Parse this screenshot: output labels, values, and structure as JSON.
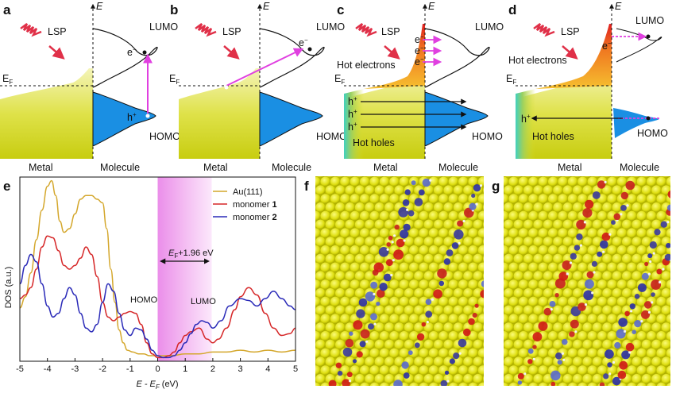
{
  "panel_labels": {
    "a": "a",
    "b": "b",
    "c": "c",
    "d": "d",
    "e": "e",
    "f": "f",
    "g": "g"
  },
  "diagram": {
    "energy_axis": "E",
    "fermi_label": "E",
    "fermi_sub": "F",
    "lsp": "LSP",
    "lumo": "LUMO",
    "homo": "HOMO",
    "metal": "Metal",
    "molecule": "Molecule",
    "electron": "e",
    "hole": "h",
    "minus": "−",
    "plus": "+",
    "hot_electrons": "Hot electrons",
    "hot_holes": "Hot holes"
  },
  "colors": {
    "metal_yellow": "#d8dc2a",
    "homo_blue": "#1a8fe3",
    "hot_orange": "#f07820",
    "arrow_magenta": "#e040e0",
    "lsp_red": "#e03048",
    "band_pink": "#f2a6f0",
    "au_line": "#d4a72c",
    "m1_line": "#d62728",
    "m2_line": "#2a2ab8"
  },
  "chart_data": {
    "type": "line",
    "xlabel_main": "E - E",
    "xlabel_sub": "F",
    "xlabel_unit": "(eV)",
    "ylabel": "DOS (a.u.)",
    "xlim": [
      -5,
      5
    ],
    "xticks": [
      "-5",
      "-4",
      "-3",
      "-2",
      "-1",
      "0",
      "1",
      "2",
      "3",
      "4",
      "5"
    ],
    "band": {
      "from": 0,
      "to": 1.96,
      "label_main": "E",
      "label_sub": "F",
      "label_rest": "+1.96 eV"
    },
    "annotations": {
      "homo": "HOMO",
      "lumo": "LUMO"
    },
    "legend": {
      "placement": "top-right",
      "entries": [
        {
          "name": "Au(111)",
          "color": "#d4a72c"
        },
        {
          "name": "monomer ",
          "bold": "1",
          "color": "#d62728"
        },
        {
          "name": "monomer ",
          "bold": "2",
          "color": "#2a2ab8"
        }
      ]
    },
    "series": [
      {
        "key": "au",
        "color": "#d4a72c",
        "x": [
          -5,
          -4.8,
          -4.6,
          -4.4,
          -4.2,
          -4.0,
          -3.85,
          -3.7,
          -3.55,
          -3.4,
          -3.2,
          -3.0,
          -2.8,
          -2.6,
          -2.4,
          -2.2,
          -2.0,
          -1.85,
          -1.7,
          -1.55,
          -1.4,
          -1.25,
          -1.1,
          -0.9,
          -0.7,
          -0.5,
          -0.3,
          -0.1,
          0.2,
          0.5,
          1.0,
          1.5,
          2.0,
          2.5,
          3.0,
          3.5,
          4.0,
          4.5,
          5.0
        ],
        "y": [
          0.29,
          0.35,
          0.48,
          0.66,
          0.82,
          0.95,
          0.98,
          0.9,
          0.76,
          0.7,
          0.72,
          0.8,
          0.88,
          0.9,
          0.9,
          0.88,
          0.86,
          0.72,
          0.5,
          0.32,
          0.17,
          0.1,
          0.06,
          0.05,
          0.04,
          0.04,
          0.03,
          0.03,
          0.03,
          0.03,
          0.04,
          0.04,
          0.05,
          0.05,
          0.06,
          0.05,
          0.06,
          0.05,
          0.06
        ]
      },
      {
        "key": "m1",
        "color": "#d62728",
        "x": [
          -5,
          -4.8,
          -4.6,
          -4.4,
          -4.2,
          -4.0,
          -3.8,
          -3.6,
          -3.4,
          -3.2,
          -3.0,
          -2.8,
          -2.6,
          -2.4,
          -2.2,
          -2.0,
          -1.8,
          -1.6,
          -1.4,
          -1.2,
          -1.0,
          -0.8,
          -0.6,
          -0.4,
          -0.2,
          0.0,
          0.2,
          0.4,
          0.6,
          0.8,
          1.0,
          1.2,
          1.5,
          1.8,
          2.0,
          2.2,
          2.5,
          2.8,
          3.0,
          3.3,
          3.6,
          3.9,
          4.2,
          4.5,
          4.8,
          5.0
        ],
        "y": [
          0.34,
          0.36,
          0.4,
          0.5,
          0.62,
          0.68,
          0.67,
          0.6,
          0.52,
          0.5,
          0.52,
          0.56,
          0.62,
          0.58,
          0.46,
          0.32,
          0.24,
          0.22,
          0.24,
          0.26,
          0.27,
          0.26,
          0.2,
          0.1,
          0.04,
          0.02,
          0.02,
          0.03,
          0.05,
          0.1,
          0.14,
          0.16,
          0.18,
          0.12,
          0.1,
          0.12,
          0.18,
          0.28,
          0.35,
          0.4,
          0.36,
          0.26,
          0.18,
          0.14,
          0.15,
          0.18
        ]
      },
      {
        "key": "m2",
        "color": "#2a2ab8",
        "x": [
          -5,
          -4.8,
          -4.6,
          -4.4,
          -4.2,
          -4.0,
          -3.8,
          -3.6,
          -3.4,
          -3.2,
          -3.0,
          -2.8,
          -2.6,
          -2.4,
          -2.2,
          -2.0,
          -1.8,
          -1.6,
          -1.4,
          -1.2,
          -1.0,
          -0.8,
          -0.6,
          -0.4,
          -0.2,
          0.0,
          0.2,
          0.4,
          0.6,
          0.8,
          1.0,
          1.2,
          1.4,
          1.6,
          1.8,
          2.0,
          2.3,
          2.6,
          3.0,
          3.3,
          3.6,
          3.9,
          4.2,
          4.5,
          4.8,
          5.0
        ],
        "y": [
          0.42,
          0.52,
          0.58,
          0.54,
          0.42,
          0.3,
          0.24,
          0.26,
          0.34,
          0.4,
          0.36,
          0.26,
          0.18,
          0.16,
          0.2,
          0.32,
          0.42,
          0.38,
          0.26,
          0.17,
          0.14,
          0.18,
          0.17,
          0.12,
          0.06,
          0.03,
          0.02,
          0.02,
          0.03,
          0.06,
          0.1,
          0.15,
          0.2,
          0.22,
          0.21,
          0.18,
          0.22,
          0.3,
          0.34,
          0.33,
          0.3,
          0.34,
          0.38,
          0.34,
          0.3,
          0.28
        ]
      }
    ]
  }
}
